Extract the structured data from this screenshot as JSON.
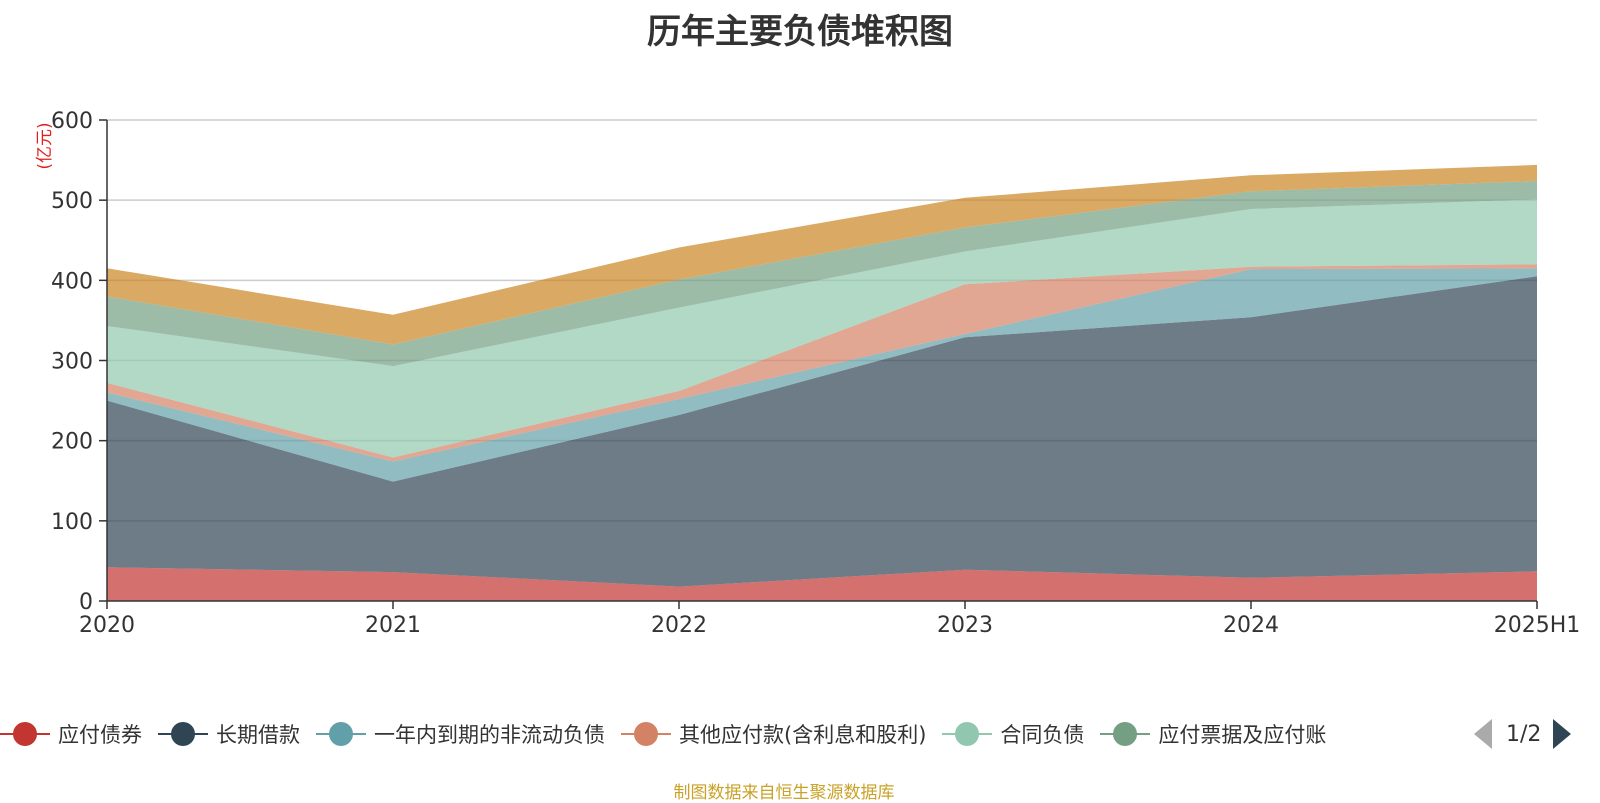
{
  "chart_data": {
    "type": "area",
    "stacked": true,
    "title": "历年主要负债堆积图",
    "ylabel": "(亿元)",
    "xlabel": "",
    "categories": [
      "2020",
      "2021",
      "2022",
      "2023",
      "2024",
      "2025H1"
    ],
    "ylim": [
      0,
      600
    ],
    "yticks": [
      0,
      100,
      200,
      300,
      400,
      500,
      600
    ],
    "grid": true,
    "legend_position": "bottom",
    "series": [
      {
        "name": "应付债券",
        "color": "#c23531",
        "values": [
          42,
          36,
          18,
          39,
          29,
          37
        ]
      },
      {
        "name": "长期借款",
        "color": "#2f4554",
        "values": [
          208,
          113,
          214,
          290,
          325,
          368
        ]
      },
      {
        "name": "一年内到期的非流动负债",
        "color": "#61a0a8",
        "values": [
          10,
          25,
          20,
          4,
          60,
          10
        ]
      },
      {
        "name": "其他应付款(含利息和股利)",
        "color": "#d48265",
        "values": [
          12,
          5,
          10,
          62,
          3,
          5
        ]
      },
      {
        "name": "合同负债",
        "color": "#91c7ae",
        "values": [
          71,
          114,
          104,
          41,
          72,
          81
        ]
      },
      {
        "name": "应付票据及应付账款",
        "color": "#749f83",
        "values": [
          37,
          27,
          35,
          30,
          22,
          23
        ]
      },
      {
        "name": "",
        "color": "#ca8622",
        "values": [
          35,
          37,
          40,
          37,
          20,
          20
        ]
      }
    ]
  },
  "legend": {
    "items": [
      "应付债券",
      "长期借款",
      "一年内到期的非流动负债",
      "其他应付款(含利息和股利)",
      "合同负债",
      "应付票据及应付账"
    ],
    "page_text": "1/2"
  },
  "footer": "制图数据来自恒生聚源数据库"
}
